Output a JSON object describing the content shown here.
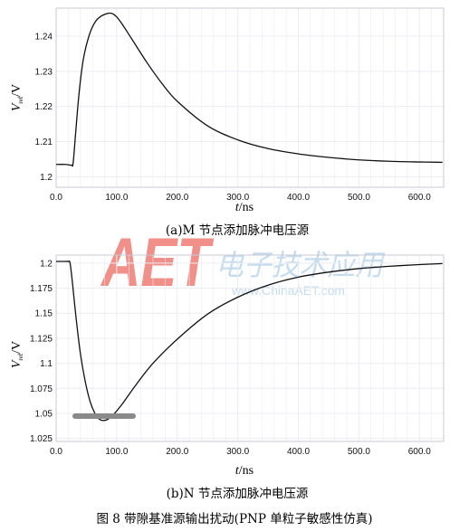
{
  "figure_caption": "图 8 带隙基准源输出扰动(PNP 单粒子敏感性仿真)",
  "watermark": {
    "logo": "AET",
    "cn": "电子技术应用",
    "url": "www.ChinaAET.com"
  },
  "colors": {
    "curve": "#111111",
    "grid": "#ececf4",
    "frame": "#c9c9d4",
    "watermark_red": "#e8453c",
    "watermark_blue": "#9fc6e4"
  },
  "chart_data": [
    {
      "type": "line",
      "caption": "(a)M 节点添加脉冲电压源",
      "xlabel": "t",
      "xunit": "/ns",
      "ylabel_main": "V",
      "ylabel_sub": "ref",
      "yunit": "/V",
      "xlim": [
        0,
        640
      ],
      "ylim": [
        1.197,
        1.248
      ],
      "xticks": [
        0,
        100,
        200,
        300,
        400,
        500,
        600
      ],
      "xtick_labels": [
        "0.0",
        "100.0",
        "200.0",
        "300.0",
        "400.0",
        "500.0",
        "600.0"
      ],
      "yticks": [
        1.2,
        1.21,
        1.22,
        1.23,
        1.24
      ],
      "ytick_labels": [
        "1.2",
        "1.21",
        "1.22",
        "1.23",
        "1.24"
      ],
      "grid": true,
      "series": [
        {
          "x": [
            0,
            15,
            25,
            28,
            32,
            38,
            45,
            55,
            65,
            75,
            85,
            92,
            100,
            110,
            125,
            150,
            175,
            200,
            250,
            300,
            350,
            400,
            450,
            500,
            550,
            600,
            638
          ],
          "y": [
            1.2035,
            1.2035,
            1.2033,
            1.2038,
            1.212,
            1.224,
            1.2335,
            1.2405,
            1.2442,
            1.2458,
            1.2465,
            1.2465,
            1.2455,
            1.2432,
            1.2392,
            1.2325,
            1.2265,
            1.2215,
            1.2145,
            1.2105,
            1.208,
            1.2065,
            1.2055,
            1.2048,
            1.2044,
            1.2042,
            1.2041
          ]
        }
      ]
    },
    {
      "type": "line",
      "caption": "(b)N 节点添加脉冲电压源",
      "xlabel": "t",
      "xunit": "/ns",
      "ylabel_main": "V",
      "ylabel_sub": "ref",
      "yunit": "/V",
      "xlim": [
        0,
        640
      ],
      "ylim": [
        1.022,
        1.208
      ],
      "xticks": [
        0,
        100,
        200,
        300,
        400,
        500,
        600
      ],
      "xtick_labels": [
        "0.0",
        "100.0",
        "200.0",
        "300.0",
        "400.0",
        "500.0",
        "600.0"
      ],
      "yticks": [
        1.025,
        1.05,
        1.075,
        1.1,
        1.125,
        1.15,
        1.175,
        1.2
      ],
      "ytick_labels": [
        "1.025",
        "1.05",
        "1.075",
        "1.1",
        "1.125",
        "1.15",
        "1.175",
        "1.2"
      ],
      "grid": true,
      "series": [
        {
          "x": [
            0,
            15,
            20,
            23,
            27,
            33,
            40,
            48,
            56,
            64,
            70,
            76,
            85,
            95,
            110,
            130,
            160,
            200,
            250,
            300,
            350,
            400,
            450,
            500,
            550,
            600,
            638
          ],
          "y": [
            1.2017,
            1.2017,
            1.2016,
            1.2,
            1.18,
            1.145,
            1.11,
            1.082,
            1.062,
            1.05,
            1.045,
            1.043,
            1.044,
            1.049,
            1.06,
            1.077,
            1.1,
            1.124,
            1.149,
            1.166,
            1.178,
            1.186,
            1.191,
            1.1945,
            1.1968,
            1.1985,
            1.1995
          ]
        }
      ]
    }
  ]
}
